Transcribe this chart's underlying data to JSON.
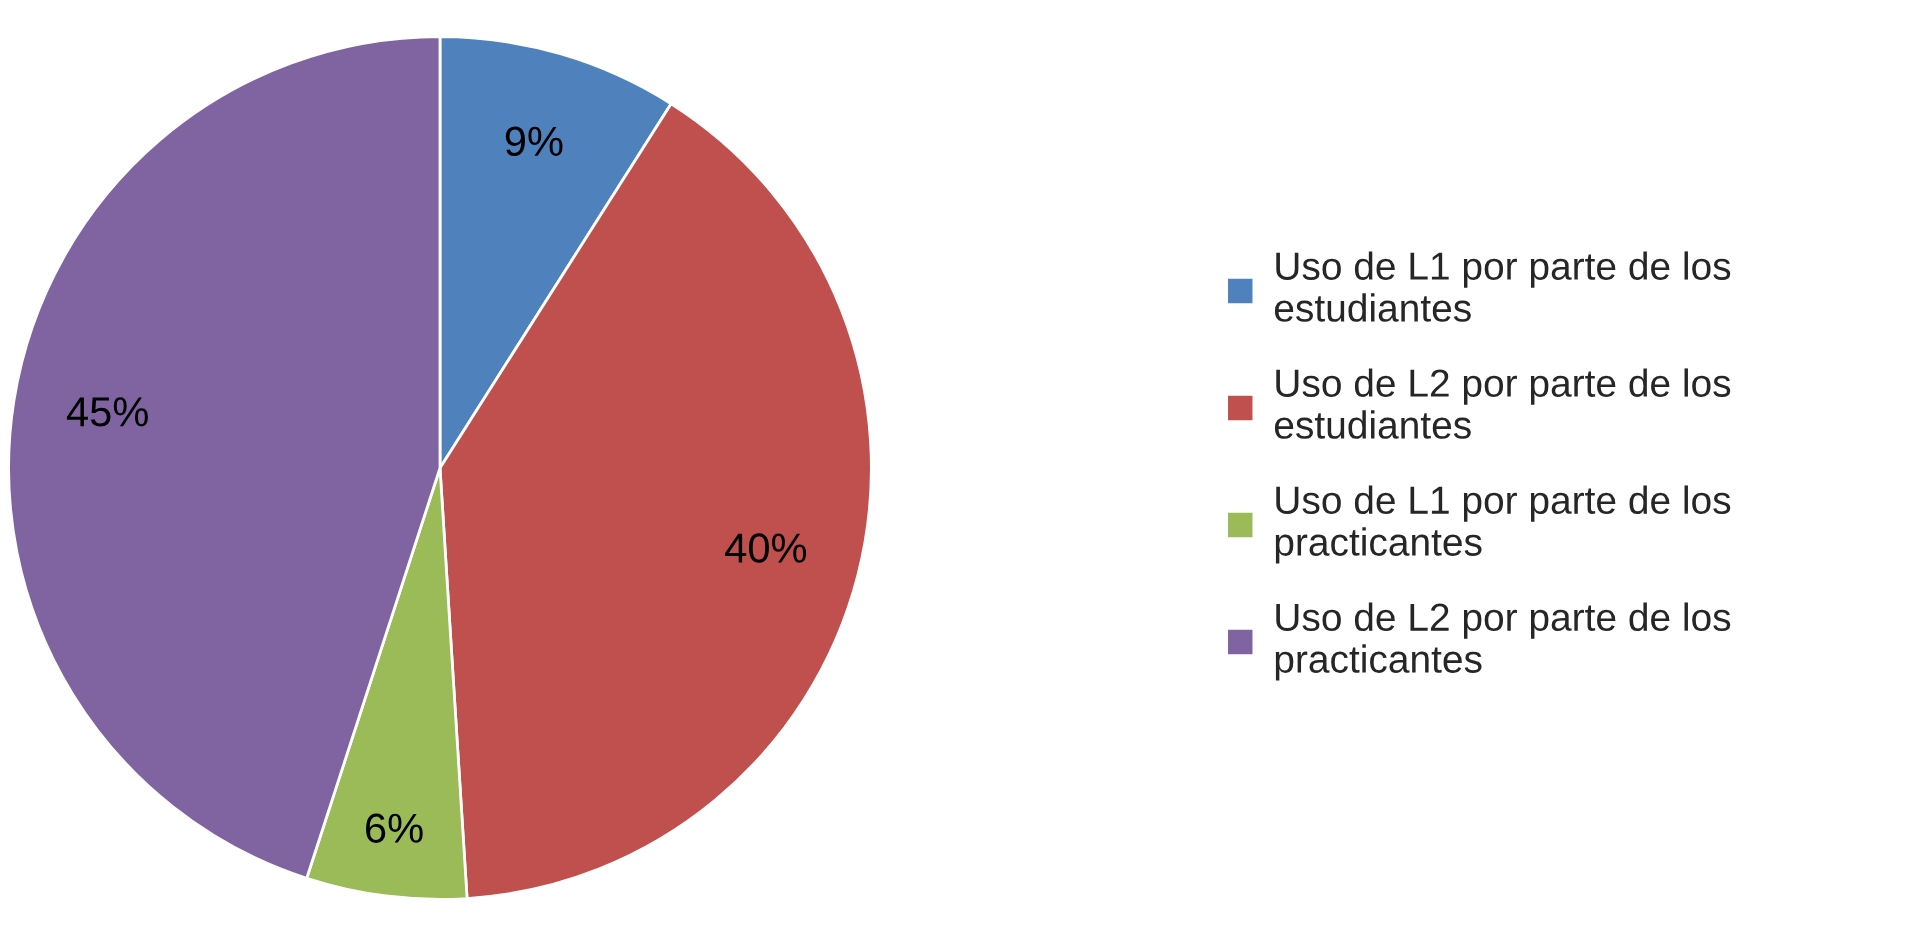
{
  "chart_data": {
    "type": "pie",
    "categories": [
      "Uso de L1 por parte de los estudiantes",
      "Uso de L2 por parte de los estudiantes",
      "Uso de L1 por parte de los practicantes",
      "Uso de L2 por parte de los practicantes"
    ],
    "values": [
      9,
      40,
      6,
      45
    ],
    "colors": [
      "#4f81bd",
      "#c0504d",
      "#9bbb59",
      "#8064a2"
    ],
    "value_labels": [
      "9%",
      "40%",
      "6%",
      "45%"
    ],
    "legend": "right"
  }
}
